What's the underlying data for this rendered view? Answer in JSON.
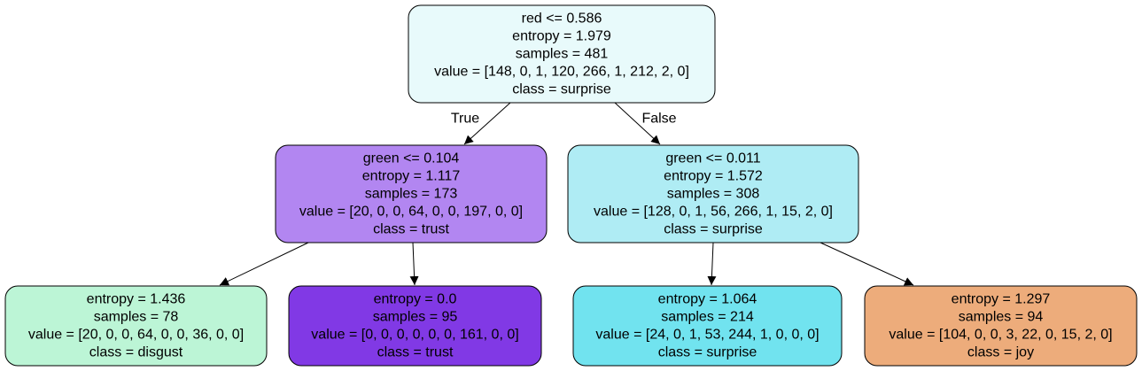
{
  "tree": {
    "nodes": [
      {
        "id": "root",
        "fill": "#e8fafb",
        "lines": [
          "red <= 0.586",
          "entropy = 1.979",
          "samples = 481",
          "value = [148, 0, 1, 120, 266, 1, 212, 2, 0]",
          "class = surprise"
        ]
      },
      {
        "id": "left",
        "fill": "#b286f1",
        "lines": [
          "green <= 0.104",
          "entropy = 1.117",
          "samples = 173",
          "value = [20, 0, 0, 64, 0, 0, 197, 0, 0]",
          "class = trust"
        ]
      },
      {
        "id": "right",
        "fill": "#afecf4",
        "lines": [
          "green <= 0.011",
          "entropy = 1.572",
          "samples = 308",
          "value = [128, 0, 1, 56, 266, 1, 15, 2, 0]",
          "class = surprise"
        ]
      },
      {
        "id": "ll",
        "fill": "#bcf5d6",
        "lines": [
          "entropy = 1.436",
          "samples = 78",
          "value = [20, 0, 0, 64, 0, 0, 36, 0, 0]",
          "class = disgust"
        ]
      },
      {
        "id": "lr",
        "fill": "#8139e5",
        "lines": [
          "entropy = 0.0",
          "samples = 95",
          "value = [0, 0, 0, 0, 0, 0, 161, 0, 0]",
          "class = trust"
        ]
      },
      {
        "id": "rl",
        "fill": "#71e3ef",
        "lines": [
          "entropy = 1.064",
          "samples = 214",
          "value = [24, 0, 1, 53, 244, 1, 0, 0, 0]",
          "class = surprise"
        ]
      },
      {
        "id": "rr",
        "fill": "#edac7b",
        "lines": [
          "entropy = 1.297",
          "samples = 94",
          "value = [104, 0, 0, 3, 22, 0, 15, 2, 0]",
          "class = joy"
        ]
      }
    ],
    "edges": [
      {
        "from": "root",
        "to": "left",
        "label": "True"
      },
      {
        "from": "root",
        "to": "right",
        "label": "False"
      },
      {
        "from": "left",
        "to": "ll",
        "label": ""
      },
      {
        "from": "left",
        "to": "lr",
        "label": ""
      },
      {
        "from": "right",
        "to": "rl",
        "label": ""
      },
      {
        "from": "right",
        "to": "rr",
        "label": ""
      }
    ]
  }
}
